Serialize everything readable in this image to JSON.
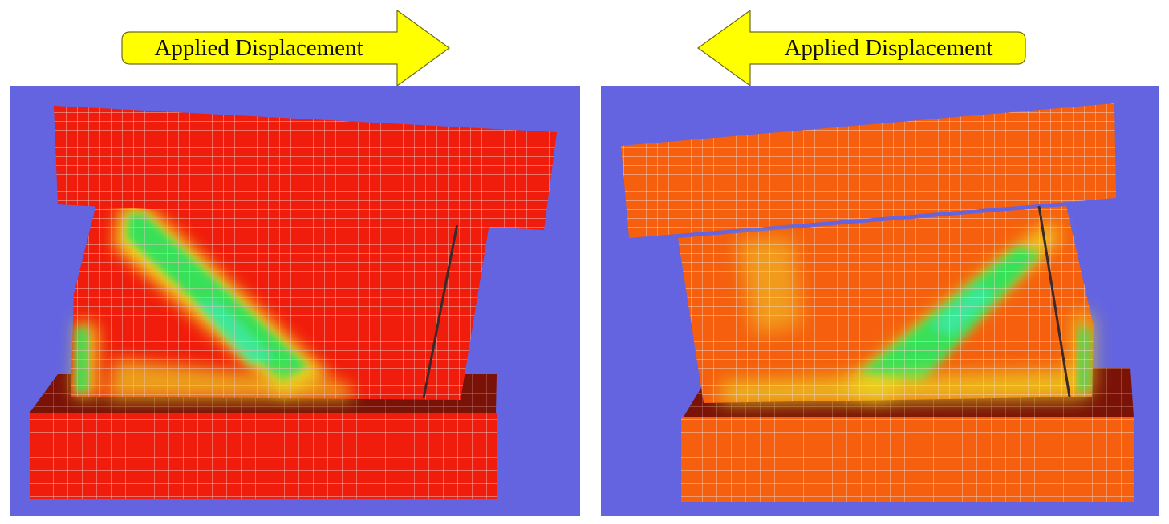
{
  "arrows": {
    "right": {
      "label": "Applied Displacement",
      "direction": "right"
    },
    "left": {
      "label": "Applied Displacement",
      "direction": "left"
    }
  },
  "colors": {
    "background": "#6464e0",
    "arrow_fill": "#ffff00",
    "left_model_base": "#f01c0c",
    "right_model_base": "#f55f0e",
    "base_top_face": "#7a1208",
    "mesh_lines": "#e9c6c0",
    "high_stress_green": "#38e05a",
    "mid_stress_yellow": "#f0e020",
    "crack_line": "#3a2a2a"
  },
  "panels": [
    {
      "name": "left-model",
      "displacement_direction": "right"
    },
    {
      "name": "right-model",
      "displacement_direction": "left"
    }
  ]
}
